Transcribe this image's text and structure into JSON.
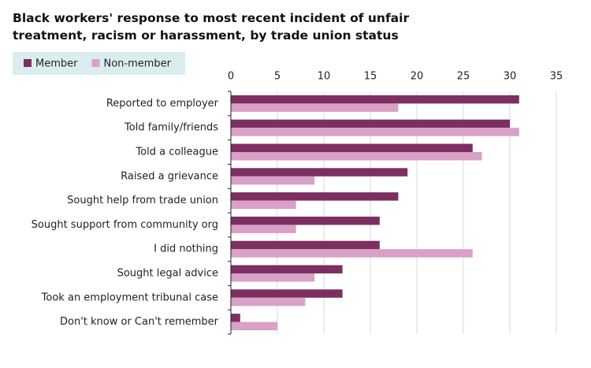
{
  "chart_data": {
    "type": "hbar",
    "title": "Black workers' response to most recent incident of unfair treatment, racism or harassment, by trade union status",
    "categories": [
      "Reported to employer",
      "Told family/friends",
      "Told a colleague",
      "Raised a grievance",
      "Sought help from trade union",
      "Sought support from community org",
      "I did nothing",
      "Sought legal advice",
      "Took an employment tribunal case",
      "Don't know or Can't remember"
    ],
    "series": [
      {
        "name": "Member",
        "color": "#7c2f60",
        "values": [
          31,
          30,
          26,
          19,
          18,
          16,
          16,
          12,
          12,
          1
        ]
      },
      {
        "name": "Non-member",
        "color": "#d8a1c5",
        "values": [
          18,
          31,
          27,
          9,
          7,
          7,
          26,
          9,
          8,
          5
        ]
      }
    ],
    "xlim": [
      0,
      35
    ],
    "xticks": [
      0,
      5,
      10,
      15,
      20,
      25,
      30,
      35
    ],
    "grid": true,
    "legend": "top-left"
  }
}
